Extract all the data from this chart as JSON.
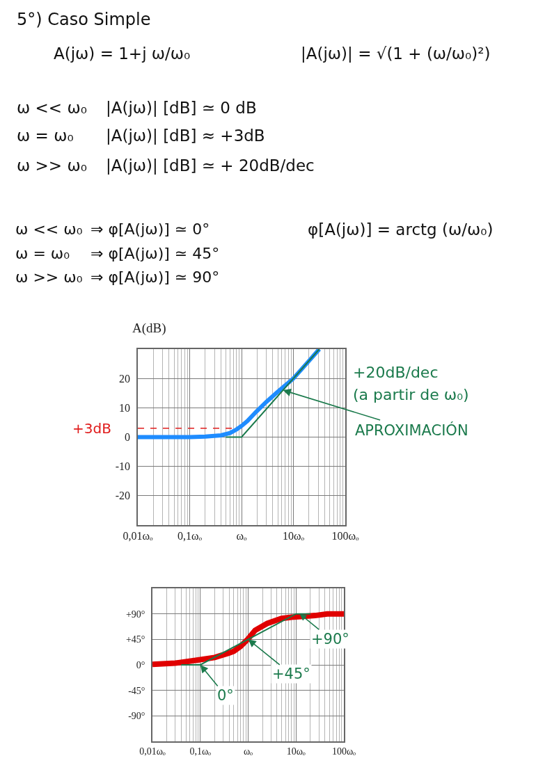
{
  "chart_data": [
    {
      "type": "line",
      "title": "5°) Caso Simple",
      "ylabel": "A(dB)",
      "log": "x",
      "grid": true,
      "xlim": [
        0.01,
        100
      ],
      "xticks": [
        {
          "value": 0.01,
          "label": "0,01ωₒ"
        },
        {
          "value": 0.1,
          "label": "0,1ωₒ"
        },
        {
          "value": 1,
          "label": "ωₒ"
        },
        {
          "value": 10,
          "label": "10ωₒ"
        },
        {
          "value": 100,
          "label": "100ωₒ"
        }
      ],
      "ylim": [
        -30,
        30
      ],
      "yticks": [
        -20,
        -10,
        0,
        10,
        20
      ],
      "series": [
        {
          "color": "#1e8cff",
          "x": [
            0.01,
            0.03,
            0.1,
            0.2,
            0.4,
            0.6,
            0.8,
            1,
            1.3,
            1.9,
            3,
            5,
            10,
            20,
            31.6
          ],
          "values": [
            0,
            0,
            0,
            0.2,
            0.6,
            1.4,
            2.6,
            3.8,
            5.5,
            8.6,
            12,
            15.5,
            20,
            26,
            30
          ]
        },
        {
          "color": "#1b7a4c",
          "x": [
            0.5,
            1,
            31.6
          ],
          "values": [
            0,
            0,
            30
          ]
        },
        {
          "name": "+3dB",
          "color": "#e01b1b",
          "line_style": "dashed",
          "x": [
            0.01,
            0.7
          ],
          "values": [
            3,
            3
          ]
        }
      ],
      "annotations": [
        "A(jω) = 1+j ω/ω₀",
        "|A(jω)| = √(1 + (ω/ω₀)²)",
        "ω << ω₀",
        "|A(jω)| [dB] ≃ 0 dB",
        "ω = ω₀",
        "|A(jω)| [dB] ≈ +3dB",
        "ω >> ω₀",
        "|A(jω)| [dB] ≃ + 20dB/dec",
        "ω << ω₀",
        "⇒ φ[A(jω)] ≃ 0°",
        "ω = ω₀",
        "⇒ φ[A(jω)] ≃ 45°",
        "ω >> ω₀",
        "⇒ φ[A(jω)] ≃ 90°",
        "φ[A(jω)] = arctg (ω/ω₀)",
        "+20dB/dec",
        "(a partir de ω₀)",
        {
          "text": "APROXIMACIÓN",
          "x": 6.3,
          "y": 16
        }
      ]
    },
    {
      "type": "line",
      "log": "x",
      "grid": true,
      "xlim": [
        0.01,
        100
      ],
      "xticks": [
        {
          "value": 0.01,
          "label": "0,01ωₒ"
        },
        {
          "value": 0.1,
          "label": "0,1ωₒ"
        },
        {
          "value": 1,
          "label": "ωₒ"
        },
        {
          "value": 10,
          "label": "10ωₒ"
        },
        {
          "value": 100,
          "label": "100ωₒ"
        }
      ],
      "ylim": [
        -135,
        135
      ],
      "yticks": [
        {
          "value": 90,
          "label": "+90°"
        },
        {
          "value": 45,
          "label": "+45°"
        },
        {
          "value": 0,
          "label": "0°"
        },
        {
          "value": -45,
          "label": "-45°"
        },
        {
          "value": -90,
          "label": "-90°"
        }
      ],
      "series": [
        {
          "color": "#e00000",
          "x": [
            0.01,
            0.03,
            0.08,
            0.2,
            0.4,
            0.5,
            0.7,
            1,
            1.4,
            2.5,
            5,
            8,
            25,
            45,
            100
          ],
          "values": [
            1,
            3,
            8,
            13,
            21,
            24,
            33,
            46,
            61,
            73,
            82,
            84,
            87,
            90,
            90
          ]
        },
        {
          "color": "#1b7a4c",
          "x": [
            0.04,
            0.1,
            10,
            20
          ],
          "values": [
            0,
            0,
            90,
            90
          ]
        }
      ],
      "annotations": [
        {
          "text": "0°",
          "x": 0.1,
          "y": 0
        },
        {
          "text": "+45°",
          "x": 1,
          "y": 45
        },
        {
          "text": "+90°",
          "x": 12,
          "y": 90
        }
      ]
    }
  ]
}
